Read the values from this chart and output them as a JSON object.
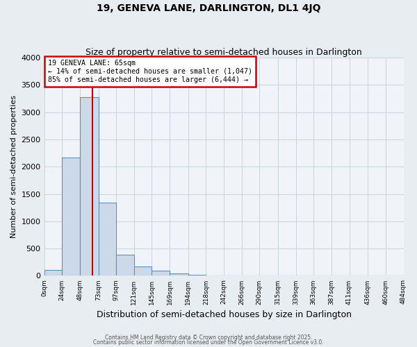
{
  "title": "19, GENEVA LANE, DARLINGTON, DL1 4JQ",
  "subtitle": "Size of property relative to semi-detached houses in Darlington",
  "xlabel": "Distribution of semi-detached houses by size in Darlington",
  "ylabel": "Number of semi-detached properties",
  "bin_edges": [
    0,
    24,
    48,
    73,
    97,
    121,
    145,
    169,
    194,
    218,
    242,
    266,
    290,
    315,
    339,
    363,
    387,
    411,
    436,
    460,
    484
  ],
  "bar_heights": [
    110,
    2170,
    3280,
    1340,
    390,
    175,
    100,
    50,
    20,
    10,
    5,
    3,
    0,
    0,
    0,
    0,
    0,
    0,
    0,
    0
  ],
  "bar_face_color": "#ccd9e8",
  "bar_edge_color": "#6090c0",
  "property_line_x": 65,
  "property_line_color": "#cc0000",
  "annotation_title": "19 GENEVA LANE: 65sqm",
  "annotation_line1": "← 14% of semi-detached houses are smaller (1,047)",
  "annotation_line2": "85% of semi-detached houses are larger (6,444) →",
  "annotation_box_edge_color": "#cc0000",
  "ylim": [
    0,
    4000
  ],
  "yticks": [
    0,
    500,
    1000,
    1500,
    2000,
    2500,
    3000,
    3500,
    4000
  ],
  "tick_labels": [
    "0sqm",
    "24sqm",
    "48sqm",
    "73sqm",
    "97sqm",
    "121sqm",
    "145sqm",
    "169sqm",
    "194sqm",
    "218sqm",
    "242sqm",
    "266sqm",
    "290sqm",
    "315sqm",
    "339sqm",
    "363sqm",
    "387sqm",
    "411sqm",
    "436sqm",
    "460sqm",
    "484sqm"
  ],
  "footer1": "Contains HM Land Registry data © Crown copyright and database right 2025.",
  "footer2": "Contains public sector information licensed under the Open Government Licence v3.0.",
  "bg_color": "#e8edf2",
  "plot_bg_color": "#f0f4f8",
  "grid_color": "#c5cdd6"
}
